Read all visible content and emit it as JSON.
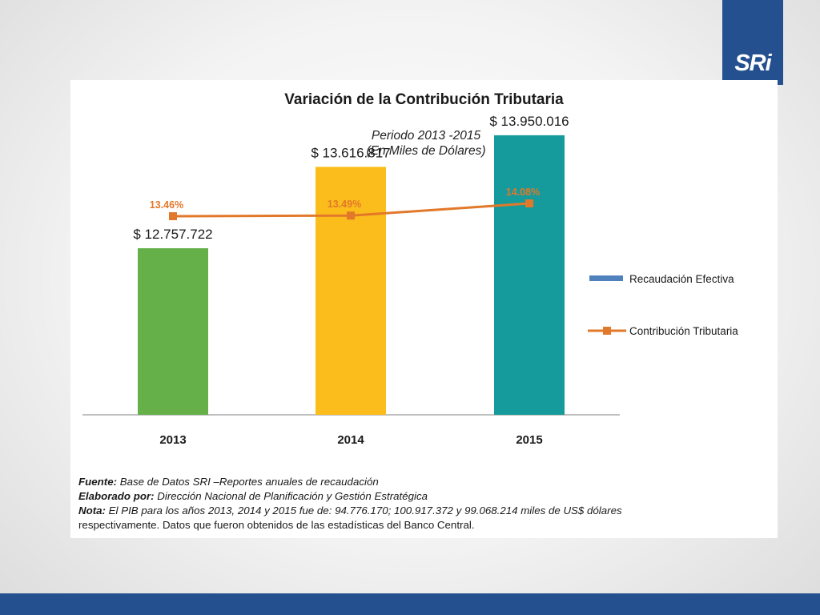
{
  "logo": {
    "text": "SRi"
  },
  "chart_data": {
    "type": "bar",
    "title": "Variación de la Contribución Tributaria",
    "subtitle_lines": [
      "Periodo 2013 -2015",
      "(En Miles de Dólares)"
    ],
    "categories": [
      "2013",
      "2014",
      "2015"
    ],
    "series": [
      {
        "name": "Recaudación Efectiva",
        "kind": "bar",
        "values": [
          12757722,
          13616817,
          13950016
        ],
        "labels": [
          "$ 12.757.722",
          "$ 13.616.817",
          "$ 13.950.016"
        ],
        "bar_colors": [
          "#66b04a",
          "#fbbd1b",
          "#159b9b"
        ],
        "legend_color": "#4f81bd"
      },
      {
        "name": "Contribución Tributaria",
        "kind": "line",
        "values": [
          13.46,
          13.49,
          14.08
        ],
        "labels": [
          "13.46%",
          "13.49%",
          "14.08%"
        ],
        "color": "#e2782a"
      }
    ],
    "legend_position": "right",
    "grid": false
  },
  "notes": {
    "fuente_label": "Fuente:",
    "fuente_text": " Base de Datos SRI –Reportes anuales de recaudación",
    "elaborado_label": "Elaborado por:",
    "elaborado_text": " Dirección Nacional de Planificación y Gestión Estratégica",
    "nota_label": "Nota:",
    "nota_text_italic": " El PIB para los años 2013, 2014 y 2015 fue de: 94.776.170; 100.917.372 y  99.068.214  miles de US$ dólares",
    "nota_text_cont": "respectivamente.  Datos que fueron obtenidos  de las estadísticas del Banco Central."
  }
}
